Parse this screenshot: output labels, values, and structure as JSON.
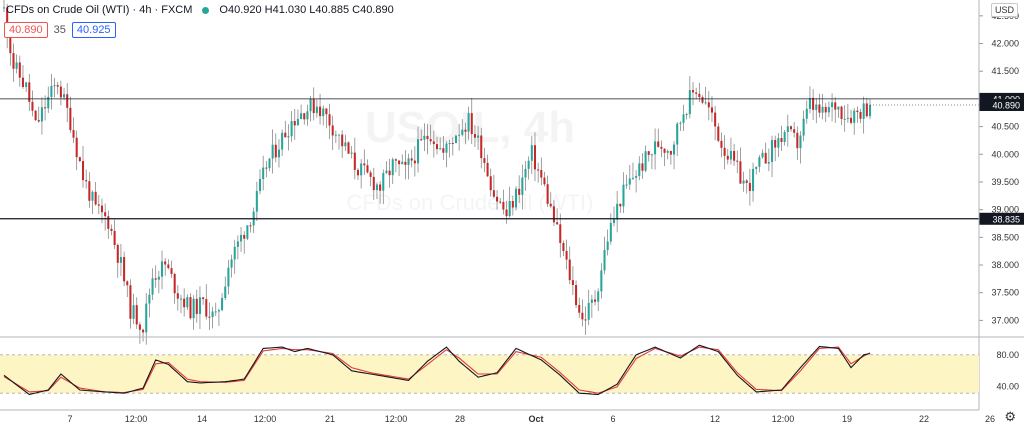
{
  "header": {
    "symbol_title": "CFDs on Crude Oil (WTI) · 4h · FXCM",
    "ohlc": "O40.920 H41.030 L40.885 C40.890",
    "bid": "40.890",
    "spread": "35",
    "ask": "40.925",
    "currency": "USD"
  },
  "colors": {
    "up": "#26a69a",
    "down": "#c62828",
    "stoch_k": "#131722",
    "stoch_d": "#e53935",
    "stoch_band": "#fdf5c4",
    "price_tag": "#131722"
  },
  "watermark": {
    "symbol": "USOIL",
    "interval": "4h",
    "description": "CFDs on Crude Oil (WTI)"
  },
  "chart_data": {
    "type": "candlestick",
    "price_axis": {
      "ticks": [
        "42.500",
        "42.000",
        "41.500",
        "41.000",
        "40.500",
        "40.000",
        "39.500",
        "39.000",
        "38.500",
        "38.000",
        "37.500",
        "37.000"
      ],
      "ylim": [
        36.7,
        42.75
      ]
    },
    "time_axis": {
      "ticks": [
        "7",
        "12:00",
        "14",
        "12:00",
        "21",
        "12:00",
        "28",
        "Oct",
        "6",
        "12",
        "12:00",
        "19",
        "22",
        "26"
      ]
    },
    "horizontal_lines": [
      {
        "price": 41.0,
        "label": "41.000"
      },
      {
        "price": 38.835,
        "label": "38.835"
      }
    ],
    "last_price": {
      "price": 40.89,
      "label": "40.890"
    },
    "anchors": [
      [
        0,
        42.6
      ],
      [
        3,
        41.6
      ],
      [
        7,
        41.2
      ],
      [
        10,
        40.5
      ],
      [
        14,
        41.0
      ],
      [
        17,
        41.3
      ],
      [
        21,
        40.6
      ],
      [
        25,
        39.6
      ],
      [
        29,
        39.0
      ],
      [
        33,
        38.8
      ],
      [
        37,
        38.0
      ],
      [
        40,
        37.2
      ],
      [
        44,
        36.9
      ],
      [
        47,
        37.8
      ],
      [
        51,
        38.0
      ],
      [
        55,
        37.5
      ],
      [
        59,
        37.2
      ],
      [
        63,
        37.3
      ],
      [
        67,
        37.0
      ],
      [
        71,
        38.0
      ],
      [
        75,
        38.5
      ],
      [
        79,
        39.0
      ],
      [
        83,
        39.8
      ],
      [
        87,
        40.2
      ],
      [
        91,
        40.6
      ],
      [
        95,
        40.8
      ],
      [
        99,
        40.9
      ],
      [
        103,
        40.6
      ],
      [
        107,
        40.2
      ],
      [
        111,
        39.8
      ],
      [
        115,
        39.6
      ],
      [
        119,
        39.4
      ],
      [
        123,
        39.8
      ],
      [
        127,
        39.7
      ],
      [
        131,
        40.1
      ],
      [
        135,
        40.4
      ],
      [
        139,
        40.0
      ],
      [
        143,
        40.4
      ],
      [
        147,
        40.6
      ],
      [
        151,
        40.1
      ],
      [
        155,
        39.3
      ],
      [
        159,
        38.9
      ],
      [
        163,
        39.4
      ],
      [
        167,
        40.0
      ],
      [
        171,
        39.4
      ],
      [
        175,
        38.6
      ],
      [
        179,
        37.8
      ],
      [
        183,
        37.0
      ],
      [
        187,
        37.4
      ],
      [
        191,
        38.5
      ],
      [
        195,
        39.2
      ],
      [
        199,
        39.6
      ],
      [
        203,
        39.9
      ],
      [
        207,
        40.2
      ],
      [
        211,
        40.1
      ],
      [
        215,
        40.8
      ],
      [
        219,
        41.2
      ],
      [
        223,
        40.8
      ],
      [
        227,
        40.2
      ],
      [
        231,
        39.8
      ],
      [
        235,
        39.4
      ],
      [
        239,
        39.8
      ],
      [
        243,
        40.1
      ],
      [
        247,
        40.4
      ],
      [
        251,
        40.2
      ],
      [
        255,
        40.9
      ],
      [
        259,
        40.7
      ],
      [
        263,
        40.9
      ],
      [
        267,
        40.7
      ],
      [
        271,
        40.8
      ],
      [
        274,
        40.88
      ]
    ],
    "stochastic": {
      "levels": [
        "80.00",
        "40.00"
      ],
      "level_values": [
        80,
        40
      ],
      "range": [
        0,
        100
      ],
      "k_anchors": [
        [
          0,
          48
        ],
        [
          8,
          18
        ],
        [
          14,
          25
        ],
        [
          18,
          50
        ],
        [
          24,
          25
        ],
        [
          32,
          22
        ],
        [
          38,
          20
        ],
        [
          44,
          28
        ],
        [
          48,
          72
        ],
        [
          52,
          65
        ],
        [
          58,
          38
        ],
        [
          62,
          36
        ],
        [
          70,
          38
        ],
        [
          76,
          42
        ],
        [
          82,
          90
        ],
        [
          88,
          92
        ],
        [
          92,
          85
        ],
        [
          96,
          90
        ],
        [
          104,
          80
        ],
        [
          110,
          55
        ],
        [
          116,
          50
        ],
        [
          122,
          45
        ],
        [
          128,
          40
        ],
        [
          134,
          70
        ],
        [
          140,
          92
        ],
        [
          144,
          70
        ],
        [
          150,
          45
        ],
        [
          156,
          52
        ],
        [
          162,
          90
        ],
        [
          170,
          72
        ],
        [
          176,
          48
        ],
        [
          182,
          20
        ],
        [
          188,
          18
        ],
        [
          194,
          34
        ],
        [
          200,
          80
        ],
        [
          206,
          92
        ],
        [
          214,
          75
        ],
        [
          220,
          95
        ],
        [
          226,
          85
        ],
        [
          232,
          48
        ],
        [
          238,
          22
        ],
        [
          246,
          25
        ],
        [
          252,
          60
        ],
        [
          258,
          93
        ],
        [
          264,
          90
        ],
        [
          268,
          60
        ],
        [
          272,
          80
        ],
        [
          274,
          82
        ]
      ],
      "d_anchors": [
        [
          0,
          46
        ],
        [
          8,
          22
        ],
        [
          14,
          24
        ],
        [
          18,
          45
        ],
        [
          24,
          28
        ],
        [
          32,
          22
        ],
        [
          38,
          21
        ],
        [
          44,
          26
        ],
        [
          48,
          66
        ],
        [
          52,
          68
        ],
        [
          58,
          42
        ],
        [
          62,
          38
        ],
        [
          70,
          37
        ],
        [
          76,
          40
        ],
        [
          82,
          86
        ],
        [
          88,
          90
        ],
        [
          92,
          88
        ],
        [
          96,
          88
        ],
        [
          104,
          82
        ],
        [
          110,
          60
        ],
        [
          116,
          52
        ],
        [
          122,
          47
        ],
        [
          128,
          42
        ],
        [
          134,
          65
        ],
        [
          140,
          88
        ],
        [
          144,
          75
        ],
        [
          150,
          50
        ],
        [
          156,
          50
        ],
        [
          162,
          85
        ],
        [
          170,
          76
        ],
        [
          176,
          52
        ],
        [
          182,
          25
        ],
        [
          188,
          20
        ],
        [
          194,
          30
        ],
        [
          200,
          74
        ],
        [
          206,
          90
        ],
        [
          214,
          78
        ],
        [
          220,
          92
        ],
        [
          226,
          88
        ],
        [
          232,
          52
        ],
        [
          238,
          26
        ],
        [
          246,
          24
        ],
        [
          252,
          55
        ],
        [
          258,
          90
        ],
        [
          264,
          92
        ],
        [
          268,
          66
        ],
        [
          272,
          78
        ],
        [
          274,
          83
        ]
      ]
    },
    "xlabel": "",
    "ylabel": ""
  }
}
